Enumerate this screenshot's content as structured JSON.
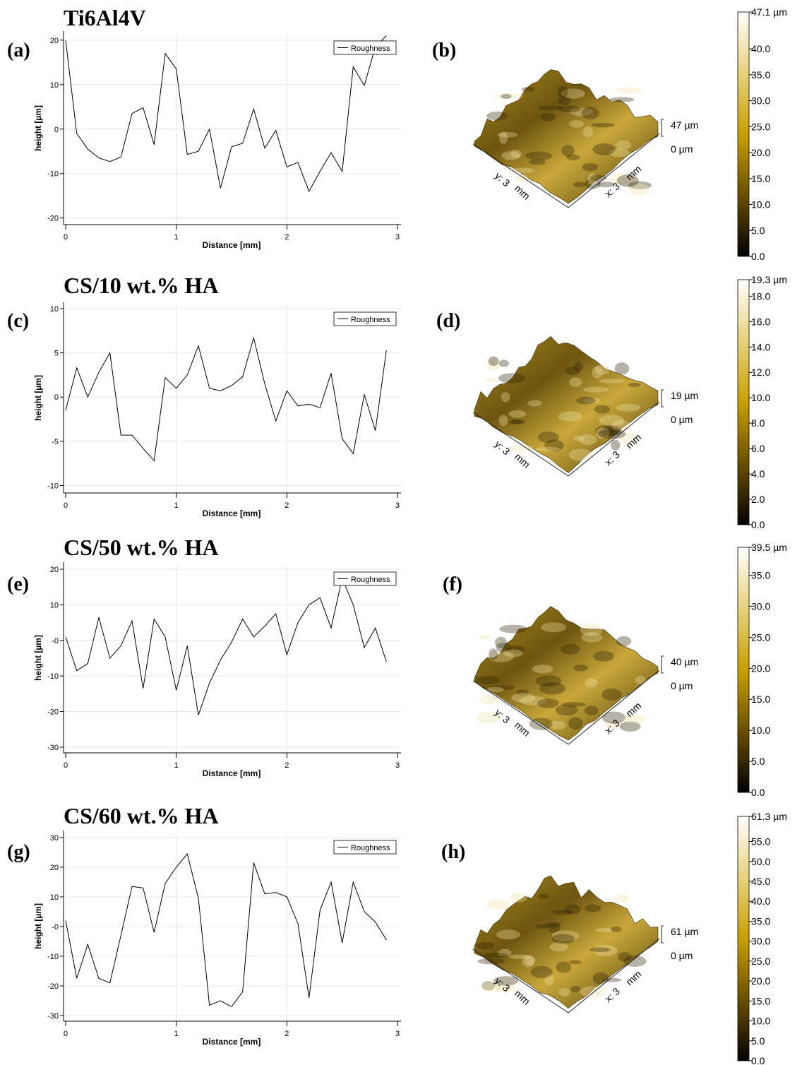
{
  "chart_data": [
    {
      "type": "line",
      "title": "Ti6Al4V",
      "panel": "(a)",
      "xlabel": "Distance [mm]",
      "ylabel": "height [µm]",
      "x": [
        0,
        0.1,
        0.2,
        0.3,
        0.4,
        0.5,
        0.6,
        0.7,
        0.8,
        0.9,
        1,
        1.1,
        1.2,
        1.3,
        1.4,
        1.5,
        1.6,
        1.7,
        1.8,
        1.9,
        2,
        2.1,
        2.2,
        2.3,
        2.4,
        2.5,
        2.6,
        2.7,
        2.8,
        2.9
      ],
      "series": [
        {
          "name": "Roughness",
          "color": "#000000",
          "values": [
            20,
            -1,
            -4.5,
            -6.5,
            -7.3,
            -6.3,
            3.5,
            4.8,
            -3.5,
            17,
            13.5,
            -5.7,
            -5,
            0,
            -13.3,
            -4,
            -3.2,
            4.5,
            -4.3,
            -0.3,
            -8.5,
            -7.5,
            -14,
            -9.5,
            -5.3,
            -9.5,
            14,
            9.8,
            18.5,
            21
          ]
        }
      ],
      "xlim": [
        0,
        3
      ],
      "xticks": [
        0,
        1,
        2,
        3
      ],
      "ylim": [
        -21,
        21.4
      ],
      "yticks": [
        20,
        10,
        0,
        -10,
        -20
      ],
      "grid": true,
      "legend": "upper right"
    },
    {
      "type": "surface",
      "panel": "(b)",
      "z_labels": [
        "47 µm",
        "0 µm"
      ],
      "y_label": "y: 3",
      "y_unit": "mm",
      "x_label": "x: 3",
      "x_unit": "mm"
    },
    {
      "type": "colorbar",
      "colors": [
        "#000000",
        "#6b4f00",
        "#c9a000",
        "#e8d27a",
        "#ffffff"
      ],
      "ylim": [
        0,
        47.1
      ],
      "yticks": [
        {
          "value": 47.1,
          "label": "47.1 µm"
        },
        {
          "value": 40,
          "label": "40.0"
        },
        {
          "value": 35,
          "label": "35.0"
        },
        {
          "value": 30,
          "label": "30.0"
        },
        {
          "value": 25,
          "label": "25.0"
        },
        {
          "value": 20,
          "label": "20.0"
        },
        {
          "value": 15,
          "label": "15.0"
        },
        {
          "value": 10,
          "label": "10.0"
        },
        {
          "value": 5,
          "label": "5.0"
        },
        {
          "value": 0,
          "label": "0.0"
        }
      ]
    },
    {
      "type": "line",
      "title": "CS/10 wt.% HA",
      "panel": "(c)",
      "xlabel": "Distance [mm]",
      "ylabel": "height [µm]",
      "x": [
        0,
        0.1,
        0.2,
        0.3,
        0.4,
        0.5,
        0.6,
        0.7,
        0.8,
        0.9,
        1,
        1.1,
        1.2,
        1.3,
        1.4,
        1.5,
        1.6,
        1.7,
        1.8,
        1.9,
        2,
        2.1,
        2.2,
        2.3,
        2.4,
        2.5,
        2.6,
        2.7,
        2.8,
        2.9
      ],
      "series": [
        {
          "name": "Roughness",
          "color": "#000000",
          "values": [
            -1.5,
            3.3,
            0,
            2.8,
            5,
            -4.3,
            -4.3,
            -5.8,
            -7.2,
            2.2,
            1,
            2.5,
            5.8,
            1,
            0.7,
            1.3,
            2.3,
            6.7,
            1.5,
            -2.7,
            0.7,
            -1,
            -0.8,
            -1.2,
            2.7,
            -4.7,
            -6.4,
            0.3,
            -3.8,
            5.3
          ]
        }
      ],
      "xlim": [
        0,
        3
      ],
      "xticks": [
        0,
        1,
        2,
        3
      ],
      "ylim": [
        -10.6,
        10.4
      ],
      "yticks": [
        10,
        5,
        0,
        -5,
        -10
      ],
      "grid": true,
      "legend": "upper right"
    },
    {
      "type": "surface",
      "panel": "(d)",
      "z_labels": [
        "19 µm",
        "0 µm"
      ],
      "y_label": "y: 3",
      "y_unit": "mm",
      "x_label": "x: 3",
      "x_unit": "mm"
    },
    {
      "type": "colorbar",
      "colors": [
        "#000000",
        "#6b4f00",
        "#c9a000",
        "#e8d27a",
        "#ffffff"
      ],
      "ylim": [
        0,
        19.3
      ],
      "yticks": [
        {
          "value": 19.3,
          "label": "19.3 µm"
        },
        {
          "value": 18,
          "label": "18.0"
        },
        {
          "value": 16,
          "label": "16.0"
        },
        {
          "value": 14,
          "label": "14.0"
        },
        {
          "value": 12,
          "label": "12.0"
        },
        {
          "value": 10,
          "label": "10.0"
        },
        {
          "value": 8,
          "label": "8.0"
        },
        {
          "value": 6,
          "label": "6.0"
        },
        {
          "value": 4,
          "label": "4.0"
        },
        {
          "value": 2,
          "label": "2.0"
        },
        {
          "value": 0,
          "label": "0.0"
        }
      ]
    },
    {
      "type": "line",
      "title": "CS/50 wt.% HA",
      "panel": "(e)",
      "xlabel": "Distance [mm]",
      "ylabel": "height [µm]",
      "x": [
        0,
        0.1,
        0.2,
        0.3,
        0.4,
        0.5,
        0.6,
        0.7,
        0.8,
        0.9,
        1,
        1.1,
        1.2,
        1.3,
        1.4,
        1.5,
        1.6,
        1.7,
        1.8,
        1.9,
        2,
        2.1,
        2.2,
        2.3,
        2.4,
        2.5,
        2.6,
        2.7,
        2.8,
        2.9
      ],
      "series": [
        {
          "name": "Roughness",
          "color": "#000000",
          "values": [
            1,
            -8.5,
            -6.5,
            6.5,
            -5,
            -1.5,
            5.5,
            -13.5,
            6,
            1,
            -14,
            -1.5,
            -21,
            -12,
            -5.5,
            -0.5,
            6,
            1,
            4,
            7.5,
            -4,
            5,
            10,
            12,
            3.5,
            17.5,
            10,
            -2,
            3.5,
            -6
          ]
        }
      ],
      "xlim": [
        0,
        3
      ],
      "xticks": [
        0,
        1,
        2,
        3
      ],
      "ylim": [
        -31,
        21.2
      ],
      "yticks": [
        20,
        10,
        {
          "value": 0,
          "label": "-0"
        },
        -10,
        -20,
        -30
      ],
      "grid": true,
      "legend": "upper right"
    },
    {
      "type": "surface",
      "panel": "(f)",
      "z_labels": [
        "40 µm",
        "0 µm"
      ],
      "y_label": "y: 3",
      "y_unit": "mm",
      "x_label": "x: 3",
      "x_unit": "mm"
    },
    {
      "type": "colorbar",
      "colors": [
        "#000000",
        "#6b4f00",
        "#c9a000",
        "#e8d27a",
        "#ffffff"
      ],
      "ylim": [
        0,
        39.5
      ],
      "yticks": [
        {
          "value": 39.5,
          "label": "39.5 µm"
        },
        {
          "value": 35,
          "label": "35.0"
        },
        {
          "value": 30,
          "label": "30.0"
        },
        {
          "value": 25,
          "label": "25.0"
        },
        {
          "value": 20,
          "label": "20.0"
        },
        {
          "value": 15,
          "label": "15.0"
        },
        {
          "value": 10,
          "label": "10.0"
        },
        {
          "value": 5,
          "label": "5.0"
        },
        {
          "value": 0,
          "label": "0.0"
        }
      ]
    },
    {
      "type": "line",
      "title": "CS/60 wt.% HA",
      "panel": "(g)",
      "xlabel": "Distance [mm]",
      "ylabel": "height [µm]",
      "x": [
        0,
        0.1,
        0.2,
        0.3,
        0.4,
        0.5,
        0.6,
        0.7,
        0.8,
        0.9,
        1,
        1.1,
        1.2,
        1.3,
        1.4,
        1.5,
        1.6,
        1.7,
        1.8,
        1.9,
        2,
        2.1,
        2.2,
        2.3,
        2.4,
        2.5,
        2.6,
        2.7,
        2.8,
        2.9
      ],
      "series": [
        {
          "name": "Roughness",
          "color": "#000000",
          "values": [
            2,
            -17.5,
            -6,
            -17.5,
            -19,
            -3,
            13.5,
            13,
            -2,
            14.5,
            20,
            24.5,
            9.5,
            -26.5,
            -25,
            -27,
            -22,
            21.5,
            11,
            11.5,
            10,
            1,
            -24,
            5.5,
            15,
            -5.5,
            15,
            5,
            1.5,
            -4.5
          ]
        }
      ],
      "xlim": [
        0,
        3
      ],
      "xticks": [
        0,
        1,
        2,
        3
      ],
      "ylim": [
        -31.2,
        31.4
      ],
      "yticks": [
        30,
        20,
        10,
        {
          "value": 0,
          "label": "-0"
        },
        -10,
        -20,
        -30
      ],
      "grid": true,
      "legend": "upper right"
    },
    {
      "type": "surface",
      "panel": "(h)",
      "z_labels": [
        "61 µm",
        "0 µm"
      ],
      "y_label": "y: 3",
      "y_unit": "mm",
      "x_label": "x: 3",
      "x_unit": "mm"
    },
    {
      "type": "colorbar",
      "colors": [
        "#000000",
        "#6b4f00",
        "#c9a000",
        "#e8d27a",
        "#ffffff"
      ],
      "ylim": [
        0,
        61.3
      ],
      "yticks": [
        {
          "value": 61.3,
          "label": "61.3 µm"
        },
        {
          "value": 55,
          "label": "55.0"
        },
        {
          "value": 50,
          "label": "50.0"
        },
        {
          "value": 45,
          "label": "45.0"
        },
        {
          "value": 40,
          "label": "40.0"
        },
        {
          "value": 35,
          "label": "35.0"
        },
        {
          "value": 30,
          "label": "30.0"
        },
        {
          "value": 25,
          "label": "25.0"
        },
        {
          "value": 20,
          "label": "20.0"
        },
        {
          "value": 15,
          "label": "15.0"
        },
        {
          "value": 10,
          "label": "10.0"
        },
        {
          "value": 5,
          "label": "5.0"
        },
        {
          "value": 0,
          "label": "0.0"
        }
      ]
    }
  ]
}
